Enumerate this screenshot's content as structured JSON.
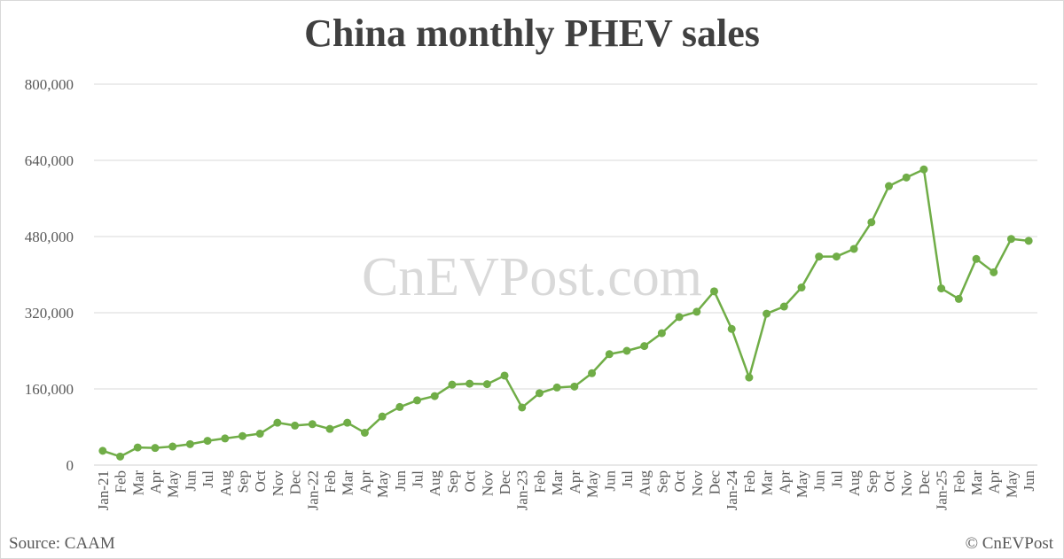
{
  "title": "China monthly PHEV sales",
  "source": "Source: CAAM",
  "copyright": "© CnEVPost",
  "watermark": "CnEVPost.com",
  "chart_data": {
    "type": "line",
    "title": "China monthly PHEV sales",
    "xlabel": "",
    "ylabel": "",
    "ylim": [
      0,
      800000
    ],
    "yticks": [
      0,
      160000,
      320000,
      480000,
      640000,
      800000
    ],
    "ytick_labels": [
      "0",
      "160,000",
      "320,000",
      "480,000",
      "640,000",
      "800,000"
    ],
    "grid": true,
    "legend": "none",
    "color": "#70ad47",
    "categories": [
      "Jan-21",
      "Feb",
      "Mar",
      "Apr",
      "May",
      "Jun",
      "Jul",
      "Aug",
      "Sep",
      "Oct",
      "Nov",
      "Dec",
      "Jan-22",
      "Feb",
      "Mar",
      "Apr",
      "May",
      "Jun",
      "Jul",
      "Aug",
      "Sep",
      "Oct",
      "Nov",
      "Dec",
      "Jan-23",
      "Feb",
      "Mar",
      "Apr",
      "May",
      "Jun",
      "Jul",
      "Aug",
      "Sep",
      "Oct",
      "Nov",
      "Dec",
      "Jan-24",
      "Feb",
      "Mar",
      "Apr",
      "May",
      "Jun",
      "Jul",
      "Aug",
      "Sep",
      "Oct",
      "Nov",
      "Dec",
      "Jan-25",
      "Feb",
      "Mar",
      "Apr",
      "May",
      "Jun"
    ],
    "series": [
      {
        "values": [
          30000,
          18000,
          37000,
          36000,
          39000,
          44000,
          51000,
          56000,
          61000,
          66000,
          89000,
          83000,
          86000,
          76000,
          89000,
          68000,
          102000,
          122000,
          136000,
          145000,
          169000,
          171000,
          170000,
          188000,
          121000,
          151000,
          163000,
          165000,
          193000,
          233000,
          240000,
          250000,
          277000,
          311000,
          322000,
          365000,
          286000,
          184000,
          318000,
          333000,
          373000,
          438000,
          438000,
          454000,
          510000,
          586000,
          604000,
          621000,
          371000,
          349000,
          433000,
          405000,
          475000,
          471000
        ]
      }
    ]
  }
}
